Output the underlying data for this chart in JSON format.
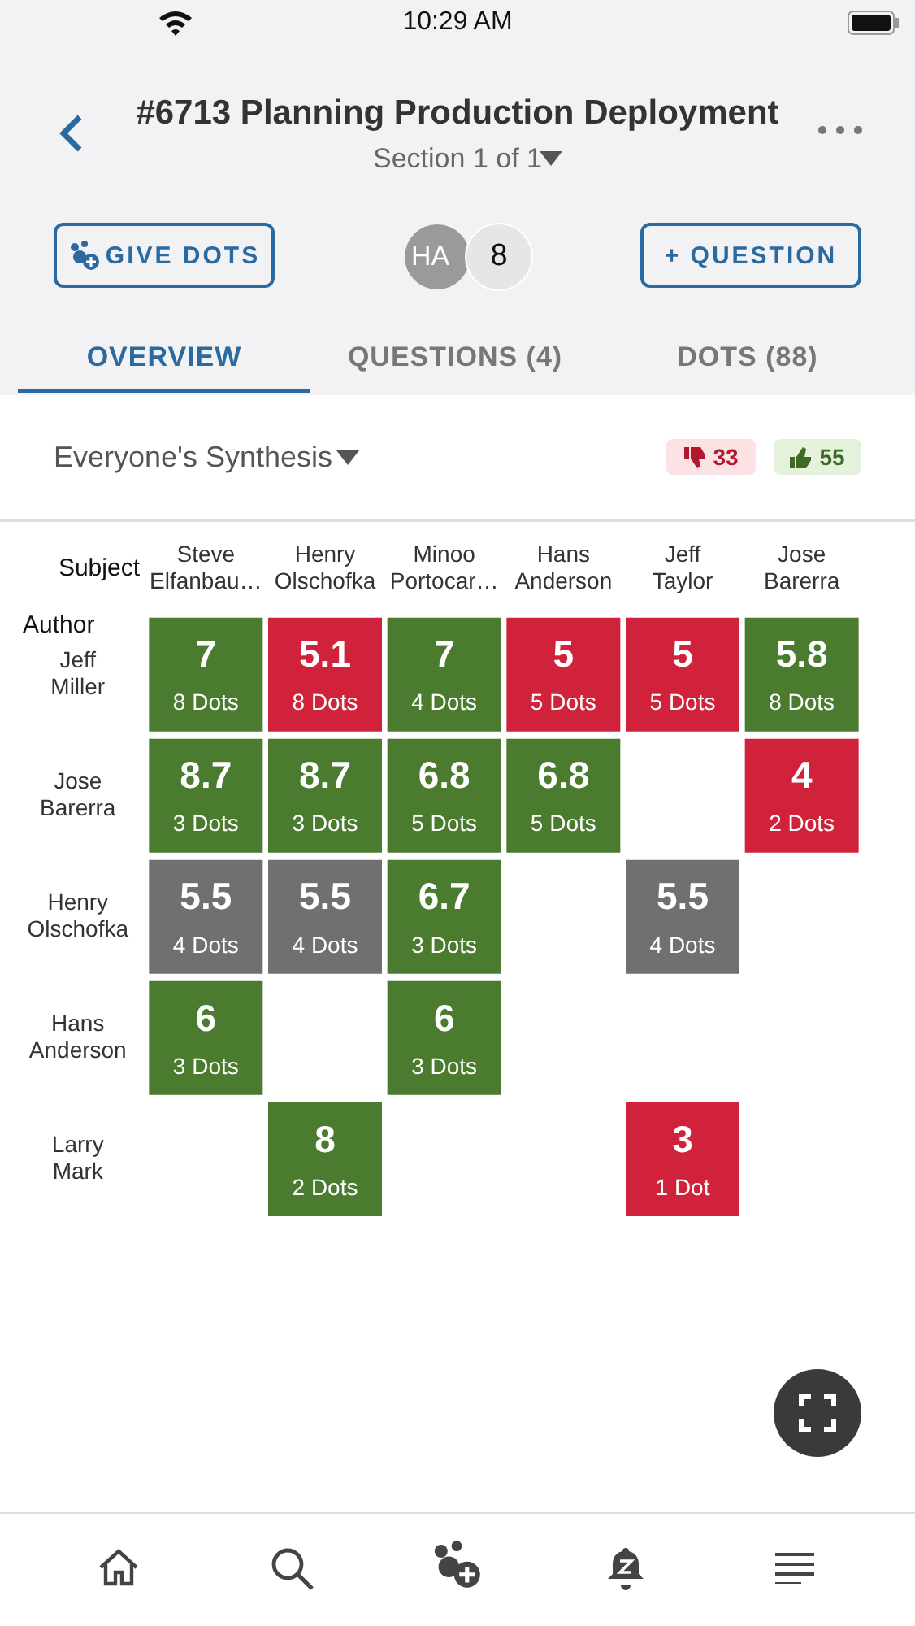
{
  "chart_data": {
    "type": "heatmap",
    "title": "#6713 Planning Production Deployment",
    "subtitle": "Section 1 of 1",
    "xlabel": "Subject",
    "ylabel": "Author",
    "categories": [
      "Steve Elfanbau…",
      "Henry Olschofka",
      "Minoo Portocar…",
      "Hans Anderson",
      "Jeff Taylor",
      "Jose Barerra"
    ],
    "y_categories": [
      "Jeff Miller",
      "Jose Barerra",
      "Henry Olschofka",
      "Hans Anderson",
      "Larry Mark"
    ],
    "cells": [
      [
        7,
        5.1,
        7,
        5,
        5,
        5.8
      ],
      [
        8.7,
        8.7,
        6.8,
        6.8,
        null,
        4
      ],
      [
        5.5,
        5.5,
        6.7,
        null,
        5.5,
        null
      ],
      [
        6,
        null,
        6,
        null,
        null,
        null
      ],
      [
        null,
        8,
        null,
        null,
        3,
        null
      ]
    ],
    "data_labels": true,
    "colors": [
      [
        "#4a7b2f",
        "#d0223a",
        "#4a7b2f",
        "#d0223a",
        "#d0223a",
        "#4a7b2f"
      ],
      [
        "#4a7b2f",
        "#4a7b2f",
        "#4a7b2f",
        "#4a7b2f",
        null,
        "#d0223a"
      ],
      [
        "#707070",
        "#707070",
        "#4a7b2f",
        null,
        "#707070",
        null
      ],
      [
        "#4a7b2f",
        null,
        "#4a7b2f",
        null,
        null,
        null
      ],
      [
        null,
        "#4a7b2f",
        null,
        null,
        "#d0223a",
        null
      ]
    ],
    "annotations": [
      "10:29 AM",
      "GIVE DOTS",
      "HA",
      "8",
      "+ QUESTION",
      "OVERVIEW",
      "QUESTIONS (4)",
      "DOTS (88)",
      "Everyone's Synthesis",
      "33",
      "55",
      "8 Dots",
      "8 Dots",
      "4 Dots",
      "5 Dots",
      "5 Dots",
      "8 Dots",
      "3 Dots",
      "3 Dots",
      "5 Dots",
      "5 Dots",
      "2 Dots",
      "4 Dots",
      "4 Dots",
      "3 Dots",
      "4 Dots",
      "3 Dots",
      "3 Dots",
      "2 Dots",
      "1 Dot"
    ]
  }
}
